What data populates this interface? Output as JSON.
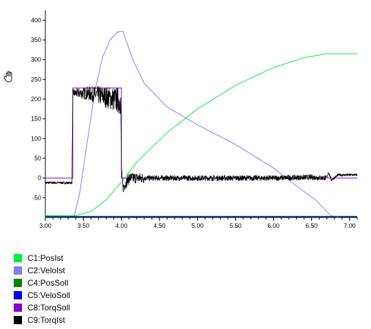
{
  "icon": {
    "name": "hand-pan-icon"
  },
  "chart_data": {
    "type": "line",
    "xlim": [
      3.0,
      7.1
    ],
    "ylim": [
      -100,
      425
    ],
    "x_ticks": [
      "3.00",
      "3.50",
      "4.00",
      "4.50",
      "5.00",
      "5.50",
      "6.00",
      "6.50",
      "7.00"
    ],
    "y_ticks": [
      "400",
      "350",
      "300",
      "250",
      "200",
      "150",
      "100",
      "50",
      "0",
      "-50"
    ],
    "grid": false,
    "legend_position": "bottom-left",
    "series": [
      {
        "name": "C1:PosIst",
        "color": "#00ee44",
        "x": [
          3.0,
          3.4,
          3.6,
          3.8,
          4.0,
          4.2,
          4.6,
          5.0,
          5.5,
          6.0,
          6.4,
          6.7,
          6.85,
          7.1
        ],
        "y": [
          -95,
          -95,
          -85,
          -55,
          -10,
          40,
          115,
          175,
          235,
          280,
          305,
          315,
          315,
          315
        ]
      },
      {
        "name": "C2:VeloIst",
        "color": "#8080ee",
        "x": [
          3.38,
          3.45,
          3.55,
          3.65,
          3.75,
          3.85,
          3.95,
          4.02,
          4.15,
          4.3,
          4.6,
          5.0,
          5.5,
          6.0,
          6.3,
          6.55,
          6.75,
          6.85
        ],
        "y": [
          -95,
          -40,
          90,
          220,
          305,
          350,
          370,
          372,
          300,
          240,
          180,
          135,
          85,
          25,
          -20,
          -55,
          -95,
          -100
        ]
      },
      {
        "name": "C4:PosSoll",
        "color": "#008800",
        "x": [
          3.0,
          7.1
        ],
        "y": [
          -97,
          -97
        ]
      },
      {
        "name": "C5:VeloSoll",
        "color": "#0000ee",
        "x": [
          3.0,
          7.1
        ],
        "y": [
          -98,
          -98
        ]
      },
      {
        "name": "C8:TorqSoll",
        "color": "#8800cc",
        "x": [
          3.0,
          3.36,
          3.36,
          4.0,
          4.0,
          4.05,
          6.7,
          6.75,
          7.1
        ],
        "y": [
          0,
          0,
          228,
          228,
          0,
          0,
          0,
          0,
          0
        ]
      },
      {
        "name": "C9:TorqIst",
        "color": "#000000",
        "x": [
          3.0,
          3.35,
          3.36,
          3.55,
          3.75,
          3.99,
          4.0,
          4.02,
          4.1,
          4.5,
          5.0,
          5.5,
          6.0,
          6.5,
          6.7,
          6.72,
          6.76,
          6.85,
          7.1
        ],
        "y": [
          -12,
          -12,
          215,
          215,
          208,
          195,
          30,
          -25,
          0,
          0,
          0,
          0,
          0,
          2,
          0,
          15,
          -5,
          8,
          8
        ]
      }
    ]
  }
}
